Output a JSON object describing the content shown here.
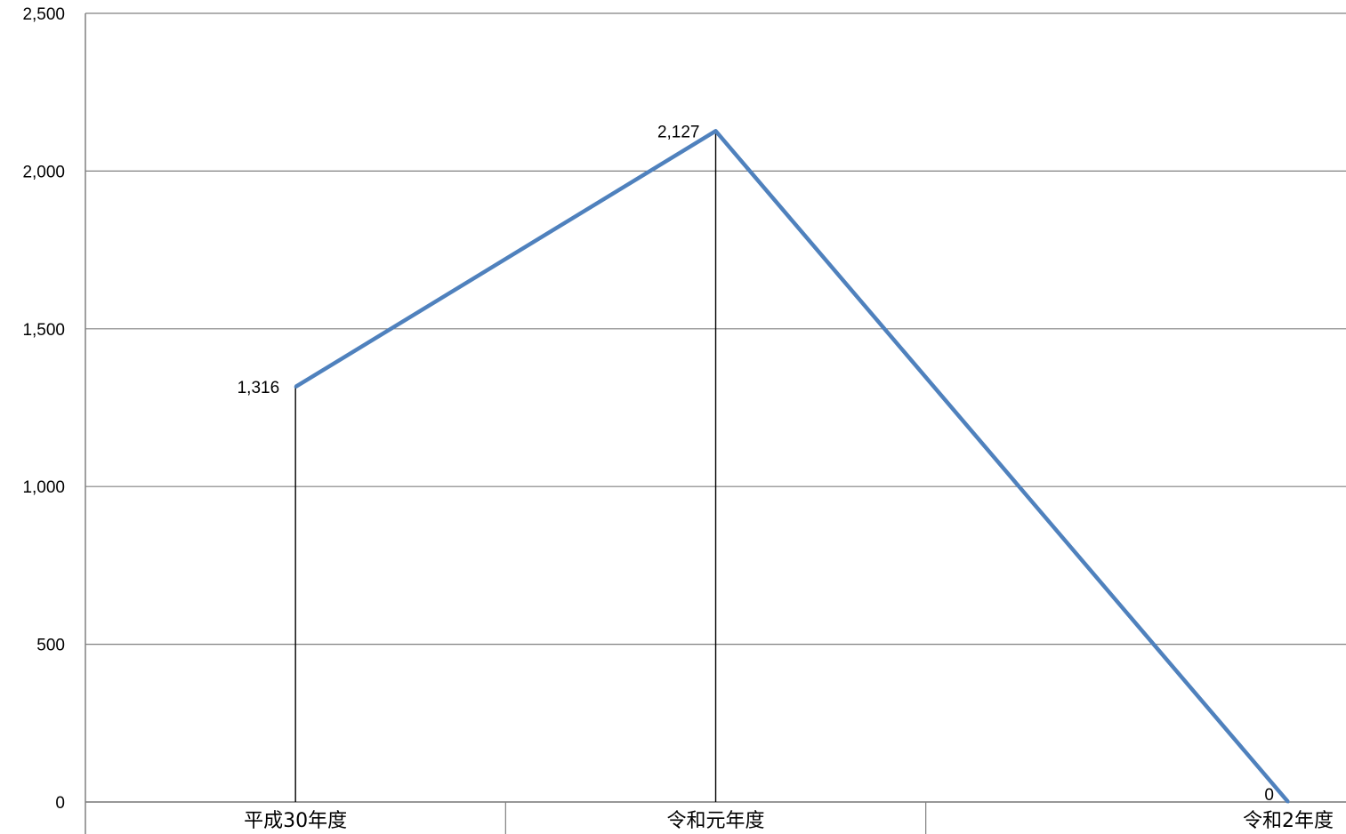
{
  "chart_data": {
    "type": "line",
    "categories": [
      "平成30年度",
      "令和元年度",
      "令和2年度"
    ],
    "series": [
      {
        "values": [
          1316,
          2127,
          0
        ],
        "labels": [
          "1,316",
          "2,127",
          "0"
        ],
        "color": "#4F81BD"
      }
    ],
    "yticks": [
      {
        "value": 0,
        "label": "0"
      },
      {
        "value": 500,
        "label": "500"
      },
      {
        "value": 1000,
        "label": "1,000"
      },
      {
        "value": 1500,
        "label": "1,500"
      },
      {
        "value": 2000,
        "label": "2,000"
      },
      {
        "value": 2500,
        "label": "2,500"
      }
    ],
    "ylim": [
      0,
      2500
    ],
    "grid": true,
    "drop_lines": true,
    "gridline_color": "#808080",
    "axis_color": "#808080"
  }
}
